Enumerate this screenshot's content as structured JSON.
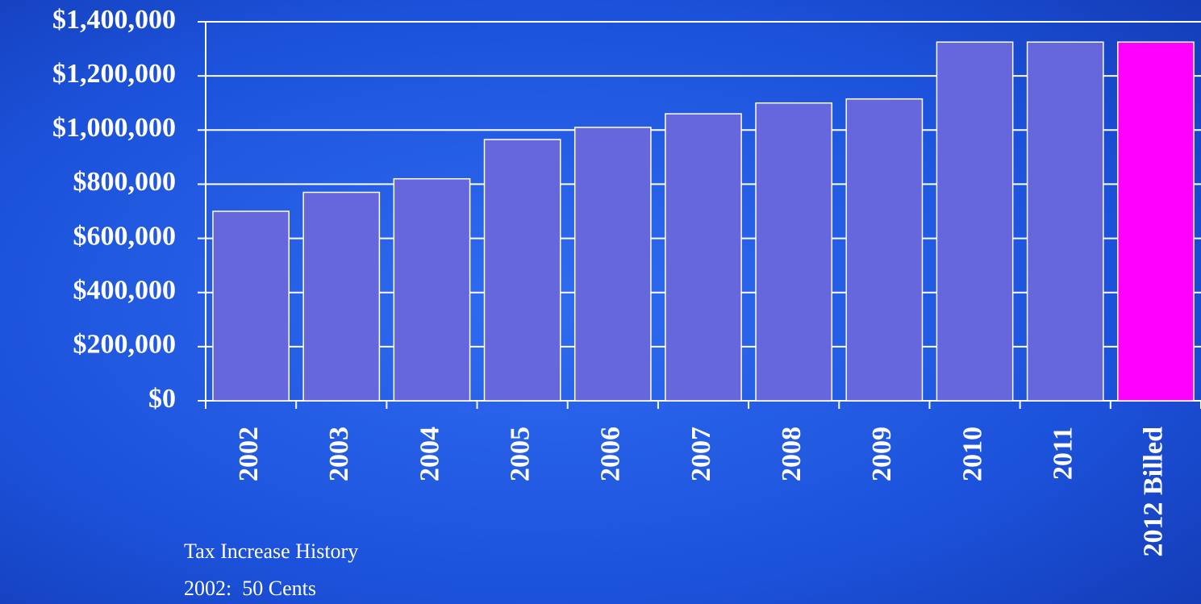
{
  "chart_data": {
    "type": "bar",
    "categories": [
      "2002",
      "2003",
      "2004",
      "2005",
      "2006",
      "2007",
      "2008",
      "2009",
      "2010",
      "2011",
      "2012 Billed"
    ],
    "values": [
      700000,
      770000,
      820000,
      965000,
      1010000,
      1060000,
      1100000,
      1115000,
      1325000,
      1325000,
      1325000
    ],
    "colors": [
      "#6666dd",
      "#6666dd",
      "#6666dd",
      "#6666dd",
      "#6666dd",
      "#6666dd",
      "#6666dd",
      "#6666dd",
      "#6666dd",
      "#6666dd",
      "#ff00ff"
    ],
    "ylim": [
      0,
      1400000
    ],
    "yticks": [
      {
        "value": 0,
        "label": "$0"
      },
      {
        "value": 200000,
        "label": "$200,000"
      },
      {
        "value": 400000,
        "label": "$400,000"
      },
      {
        "value": 600000,
        "label": "$600,000"
      },
      {
        "value": 800000,
        "label": "$800,000"
      },
      {
        "value": 1000000,
        "label": "$1,000,000"
      },
      {
        "value": 1200000,
        "label": "$1,200,000"
      },
      {
        "value": 1400000,
        "label": "$1,400,000"
      }
    ],
    "grid": true,
    "annotations": [
      "Tax Increase History",
      "2002:  50 Cents"
    ]
  }
}
